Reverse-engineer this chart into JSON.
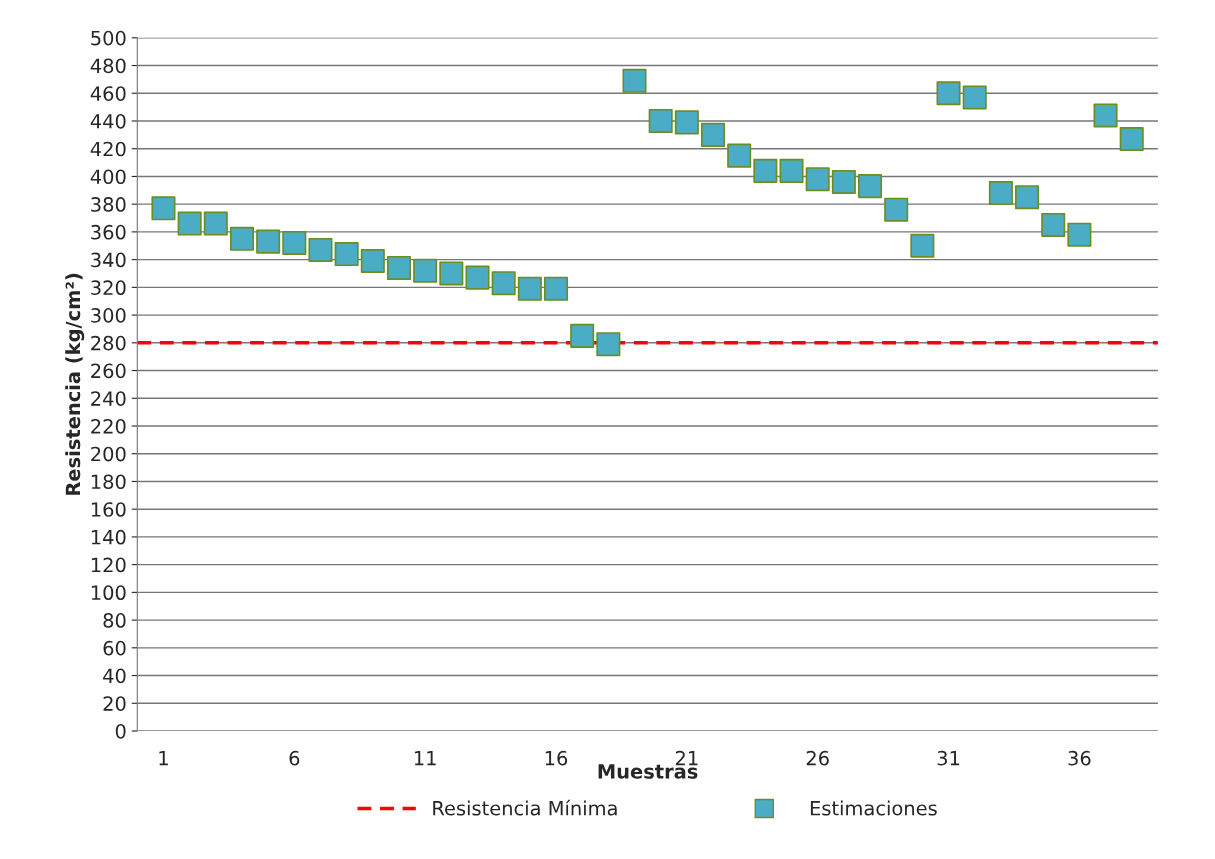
{
  "chart_data": {
    "type": "scatter",
    "xlabel": "Muestras",
    "ylabel": "Resistencia (kg/cm²)",
    "x": [
      1,
      2,
      3,
      4,
      5,
      6,
      7,
      8,
      9,
      10,
      11,
      12,
      13,
      14,
      15,
      16,
      17,
      18,
      19,
      20,
      21,
      22,
      23,
      24,
      25,
      26,
      27,
      28,
      29,
      30,
      31,
      32,
      33,
      34,
      35,
      36,
      37,
      38
    ],
    "series": [
      {
        "name": "Estimaciones",
        "color": "#4bacc6",
        "values": [
          377,
          366,
          366,
          355,
          353,
          352,
          347,
          344,
          339,
          334,
          332,
          330,
          327,
          323,
          319,
          319,
          285,
          279,
          469,
          440,
          439,
          430,
          415,
          404,
          404,
          398,
          396,
          393,
          376,
          350,
          460,
          457,
          388,
          385,
          365,
          358,
          444,
          427
        ]
      }
    ],
    "xlim": [
      0,
      39
    ],
    "xticks": [
      1,
      6,
      11,
      16,
      21,
      26,
      31,
      36
    ],
    "ylim": [
      0,
      500
    ],
    "yticks": [
      0,
      20,
      40,
      60,
      80,
      100,
      120,
      140,
      160,
      180,
      200,
      220,
      240,
      260,
      280,
      300,
      320,
      340,
      360,
      380,
      400,
      420,
      440,
      460,
      480,
      500
    ],
    "ref_lines": [
      {
        "axis": "y",
        "value": 280,
        "label": "Resistencia Mínima",
        "color": "#ff0000",
        "line_style": "dashed"
      }
    ],
    "grid": "y",
    "legend": "bottom",
    "marker": "square"
  }
}
